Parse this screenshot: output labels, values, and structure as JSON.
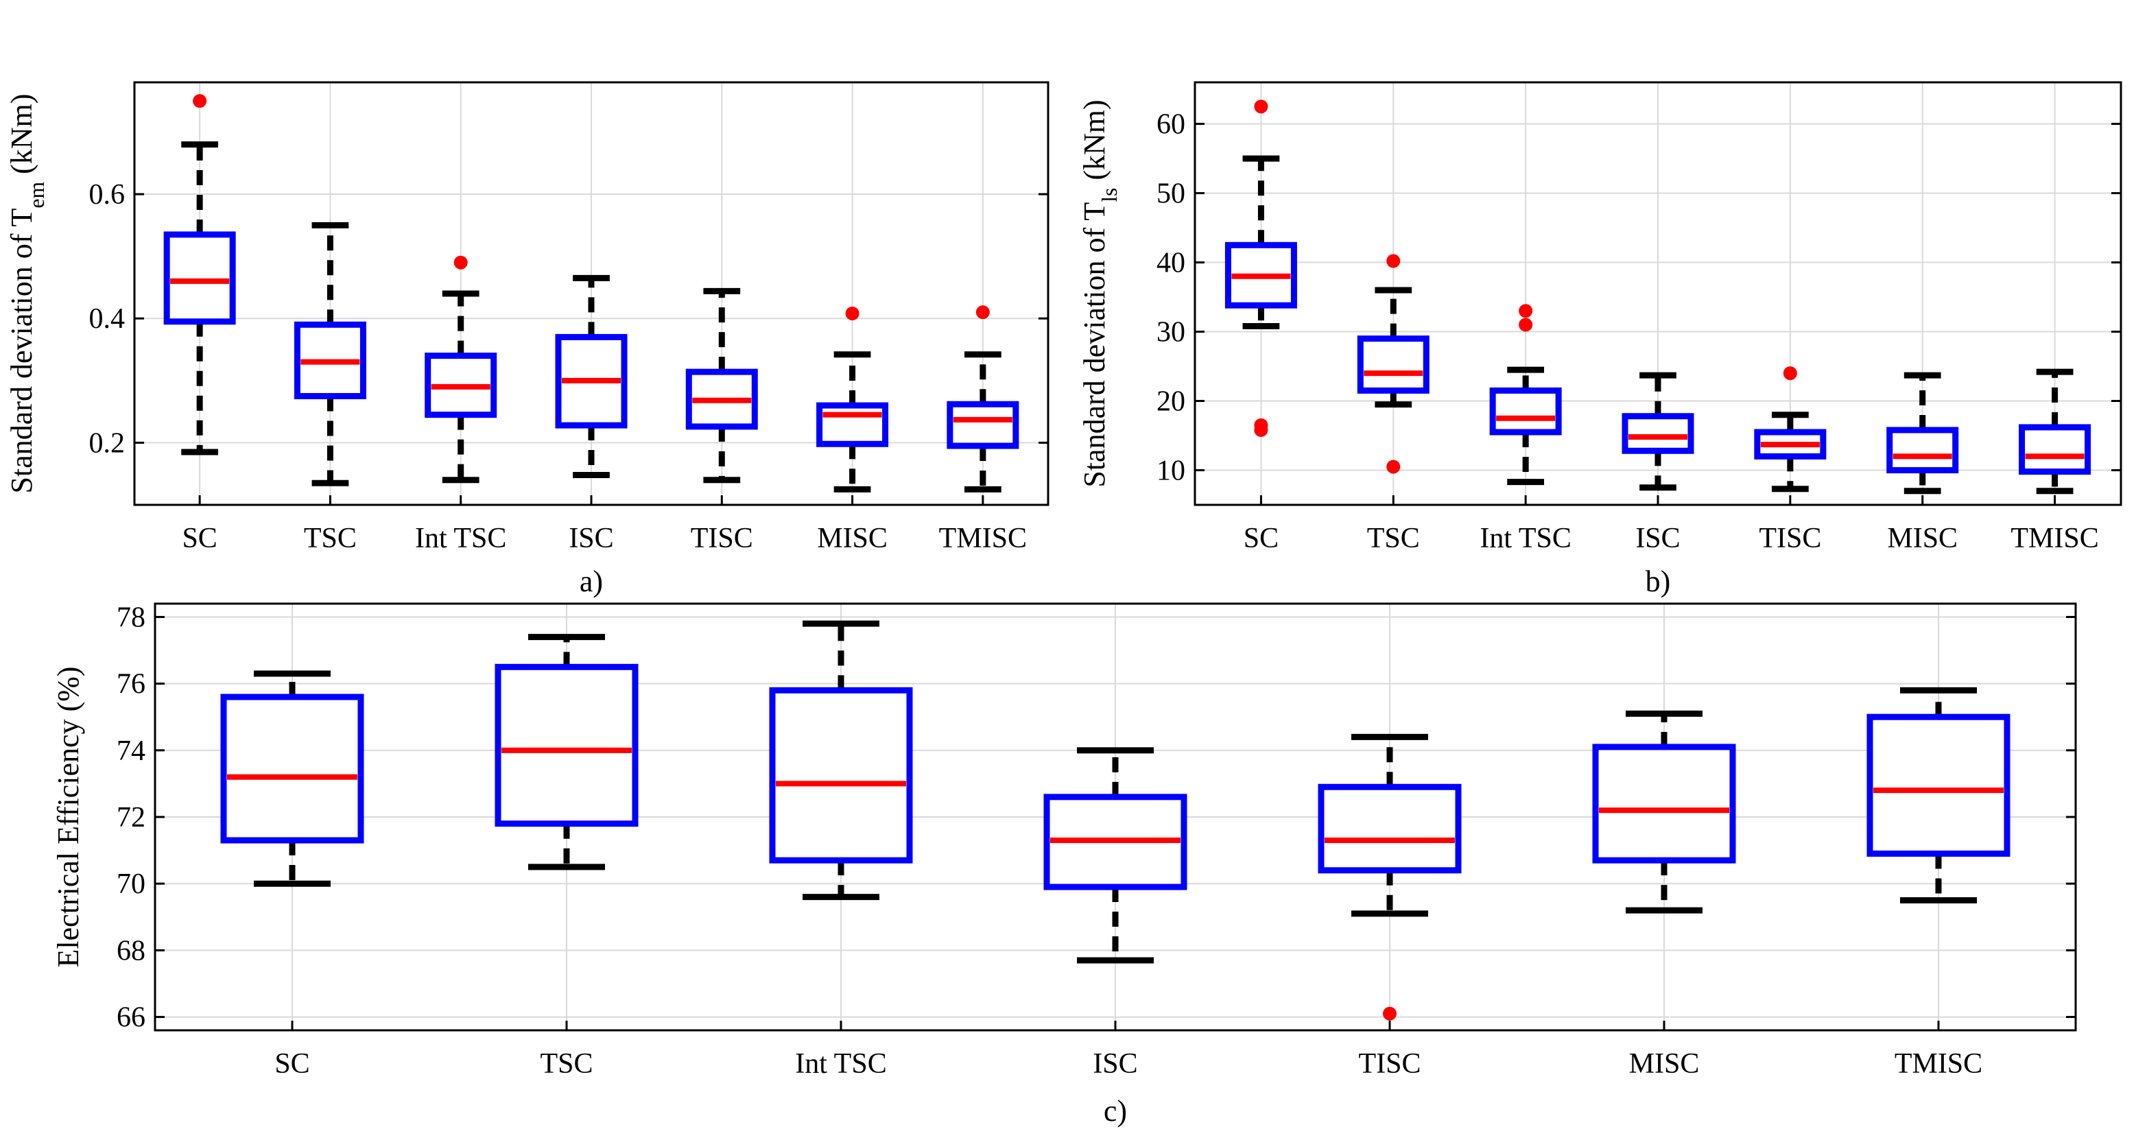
{
  "colors": {
    "box": "#0000ff",
    "median": "#ff0000",
    "whisker": "#000000",
    "outlier": "#ff0000",
    "grid": "#d9d9d9"
  },
  "chart_data": [
    {
      "id": "a",
      "type": "boxplot",
      "caption": "a)",
      "ylabel": "Standard deviation of T",
      "ylabel_sub": "em",
      "ylabel_unit": " (kNm)",
      "ylim": [
        0.1,
        0.78
      ],
      "yticks": [
        0.2,
        0.4,
        0.6
      ],
      "ytick_labels": [
        "0.2",
        "0.4",
        "0.6"
      ],
      "grid": true,
      "categories": [
        "SC",
        "TSC",
        "Int TSC",
        "ISC",
        "TISC",
        "MISC",
        "TMISC"
      ],
      "boxes": [
        {
          "whisker_low": 0.185,
          "q1": 0.395,
          "median": 0.46,
          "q3": 0.535,
          "whisker_high": 0.68,
          "outliers": [
            0.75
          ]
        },
        {
          "whisker_low": 0.135,
          "q1": 0.275,
          "median": 0.33,
          "q3": 0.39,
          "whisker_high": 0.55,
          "outliers": []
        },
        {
          "whisker_low": 0.14,
          "q1": 0.245,
          "median": 0.29,
          "q3": 0.34,
          "whisker_high": 0.44,
          "outliers": [
            0.49
          ]
        },
        {
          "whisker_low": 0.148,
          "q1": 0.228,
          "median": 0.3,
          "q3": 0.37,
          "whisker_high": 0.465,
          "outliers": []
        },
        {
          "whisker_low": 0.14,
          "q1": 0.226,
          "median": 0.268,
          "q3": 0.314,
          "whisker_high": 0.444,
          "outliers": []
        },
        {
          "whisker_low": 0.125,
          "q1": 0.198,
          "median": 0.245,
          "q3": 0.26,
          "whisker_high": 0.342,
          "outliers": [
            0.408
          ]
        },
        {
          "whisker_low": 0.125,
          "q1": 0.195,
          "median": 0.237,
          "q3": 0.262,
          "whisker_high": 0.342,
          "outliers": [
            0.41
          ]
        }
      ]
    },
    {
      "id": "b",
      "type": "boxplot",
      "caption": "b)",
      "ylabel": "Standard deviation of T",
      "ylabel_sub": "ls",
      "ylabel_unit": " (kNm)",
      "ylim": [
        5,
        66
      ],
      "yticks": [
        10,
        20,
        30,
        40,
        50,
        60
      ],
      "ytick_labels": [
        "10",
        "20",
        "30",
        "40",
        "50",
        "60"
      ],
      "grid": true,
      "categories": [
        "SC",
        "TSC",
        "Int TSC",
        "ISC",
        "TISC",
        "MISC",
        "TMISC"
      ],
      "boxes": [
        {
          "whisker_low": 30.8,
          "q1": 33.8,
          "median": 38.0,
          "q3": 42.5,
          "whisker_high": 55.0,
          "outliers": [
            62.5,
            16.5,
            15.8
          ]
        },
        {
          "whisker_low": 19.5,
          "q1": 21.5,
          "median": 24.0,
          "q3": 29.0,
          "whisker_high": 36.0,
          "outliers": [
            40.2,
            10.5
          ]
        },
        {
          "whisker_low": 8.3,
          "q1": 15.5,
          "median": 17.5,
          "q3": 21.5,
          "whisker_high": 24.5,
          "outliers": [
            33.0,
            31.0
          ]
        },
        {
          "whisker_low": 7.5,
          "q1": 12.8,
          "median": 14.8,
          "q3": 17.8,
          "whisker_high": 23.7,
          "outliers": []
        },
        {
          "whisker_low": 7.3,
          "q1": 12.0,
          "median": 13.7,
          "q3": 15.5,
          "whisker_high": 18.0,
          "outliers": [
            24.0
          ]
        },
        {
          "whisker_low": 7.0,
          "q1": 10.0,
          "median": 12.0,
          "q3": 15.8,
          "whisker_high": 23.7,
          "outliers": []
        },
        {
          "whisker_low": 7.0,
          "q1": 9.8,
          "median": 12.0,
          "q3": 16.2,
          "whisker_high": 24.2,
          "outliers": []
        }
      ]
    },
    {
      "id": "c",
      "type": "boxplot",
      "caption": "c)",
      "ylabel": "Electrical Efficiency (%)",
      "ylabel_sub": "",
      "ylabel_unit": "",
      "ylim": [
        65.6,
        78.4
      ],
      "yticks": [
        66,
        68,
        70,
        72,
        74,
        76,
        78
      ],
      "ytick_labels": [
        "66",
        "68",
        "70",
        "72",
        "74",
        "76",
        "78"
      ],
      "grid": true,
      "categories": [
        "SC",
        "TSC",
        "Int TSC",
        "ISC",
        "TISC",
        "MISC",
        "TMISC"
      ],
      "boxes": [
        {
          "whisker_low": 70.0,
          "q1": 71.3,
          "median": 73.2,
          "q3": 75.6,
          "whisker_high": 76.3,
          "outliers": []
        },
        {
          "whisker_low": 70.5,
          "q1": 71.8,
          "median": 74.0,
          "q3": 76.5,
          "whisker_high": 77.4,
          "outliers": []
        },
        {
          "whisker_low": 69.6,
          "q1": 70.7,
          "median": 73.0,
          "q3": 75.8,
          "whisker_high": 77.8,
          "outliers": []
        },
        {
          "whisker_low": 67.7,
          "q1": 69.9,
          "median": 71.3,
          "q3": 72.6,
          "whisker_high": 74.0,
          "outliers": []
        },
        {
          "whisker_low": 69.1,
          "q1": 70.4,
          "median": 71.3,
          "q3": 72.9,
          "whisker_high": 74.4,
          "outliers": [
            66.1
          ]
        },
        {
          "whisker_low": 69.2,
          "q1": 70.7,
          "median": 72.2,
          "q3": 74.1,
          "whisker_high": 75.1,
          "outliers": []
        },
        {
          "whisker_low": 69.5,
          "q1": 70.9,
          "median": 72.8,
          "q3": 75.0,
          "whisker_high": 75.8,
          "outliers": []
        }
      ]
    }
  ]
}
